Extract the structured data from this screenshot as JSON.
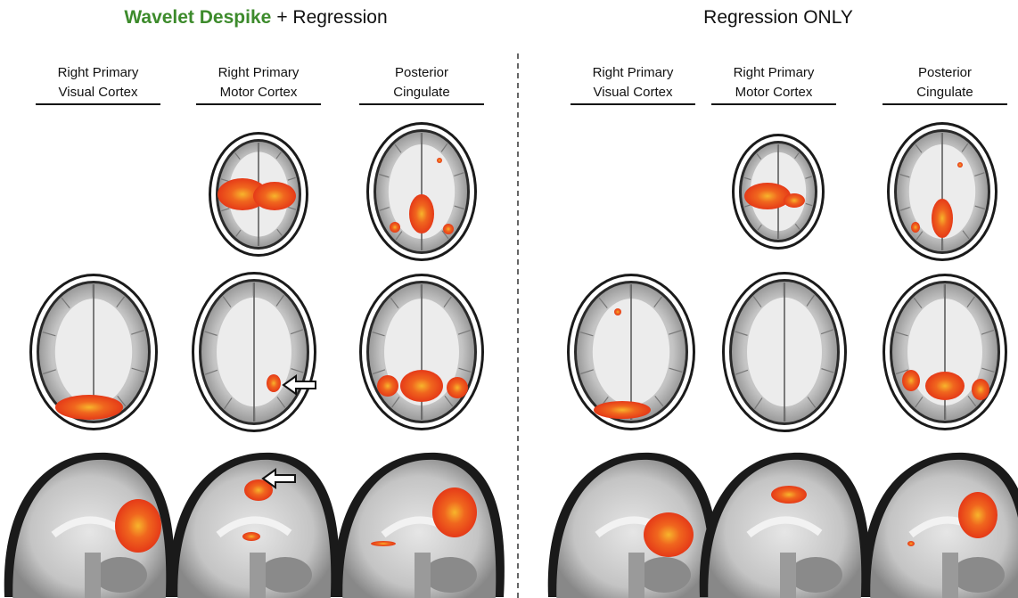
{
  "panels": [
    {
      "title": {
        "highlight": "Wavelet Despike",
        "rest": "+ Regression"
      },
      "columns": [
        {
          "lines": [
            "Right Primary",
            "Visual Cortex"
          ]
        },
        {
          "lines": [
            "Right Primary",
            "Motor Cortex"
          ]
        },
        {
          "lines": [
            "Posterior",
            "Cingulate"
          ]
        }
      ]
    },
    {
      "title": {
        "text": "Regression ONLY"
      },
      "columns": [
        {
          "lines": [
            "Right Primary",
            "Visual Cortex"
          ]
        },
        {
          "lines": [
            "Right Primary",
            "Motor Cortex"
          ]
        },
        {
          "lines": [
            "Posterior",
            "Cingulate"
          ]
        }
      ]
    }
  ]
}
